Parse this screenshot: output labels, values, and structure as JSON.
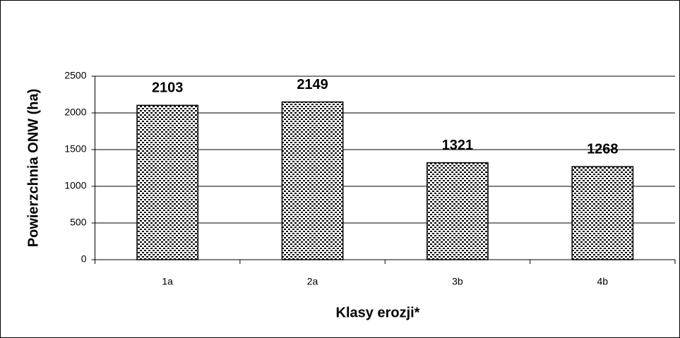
{
  "chart_data": {
    "type": "bar",
    "xlabel": "Klasy erozji*",
    "ylabel": "Powierzchnia ONW (ha)",
    "categories": [
      "1a",
      "2a",
      "3b",
      "4b"
    ],
    "values": [
      2103,
      2149,
      1321,
      1268
    ],
    "ylim": [
      0,
      2500
    ],
    "yticks": [
      0,
      500,
      1000,
      1500,
      2000,
      2500
    ],
    "grid": true,
    "color": "#000000"
  }
}
